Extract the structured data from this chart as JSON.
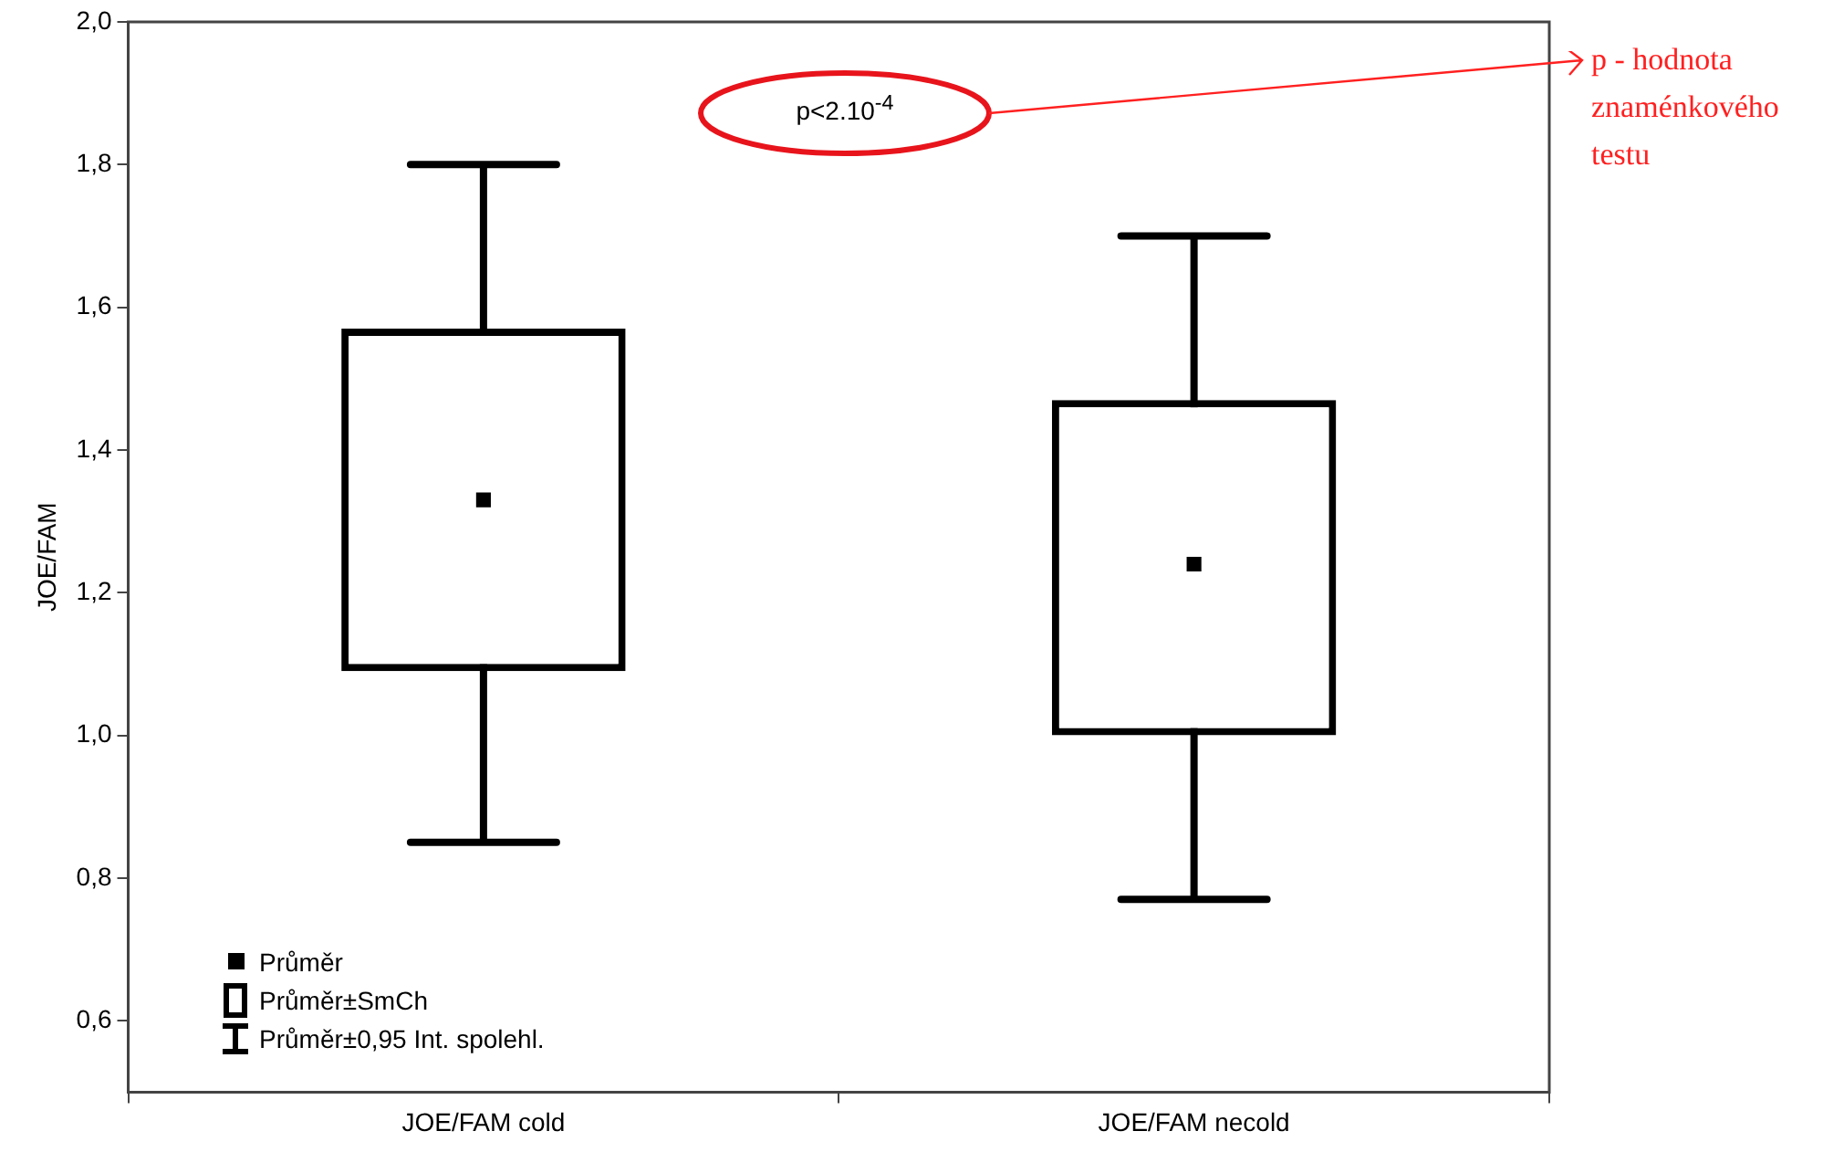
{
  "chart_data": {
    "type": "box",
    "ylabel": "JOE/FAM",
    "categories": [
      "JOE/FAM cold",
      "JOE/FAM necold"
    ],
    "ylim": [
      0.5,
      2.0
    ],
    "yticks": [
      {
        "value": 0.6,
        "label": "0,6"
      },
      {
        "value": 0.8,
        "label": "0,8"
      },
      {
        "value": 1.0,
        "label": "1,0"
      },
      {
        "value": 1.2,
        "label": "1,2"
      },
      {
        "value": 1.4,
        "label": "1,4"
      },
      {
        "value": 1.6,
        "label": "1,6"
      },
      {
        "value": 1.8,
        "label": "1,8"
      },
      {
        "value": 2.0,
        "label": "2,0"
      }
    ],
    "grid": false,
    "annotations": [
      "p<2.10$^{-4}$",
      "p - hodnota znaménkového testu",
      "Průměr",
      "Průměr±SmCh",
      "Průměr±0,95 Int. spolehl."
    ],
    "boxes": [
      {
        "low": 0.85,
        "q1": 1.09,
        "q3": 1.57,
        "high": 1.8,
        "mean": 1.33
      },
      {
        "low": 0.77,
        "q1": 1.0,
        "q3": 1.47,
        "high": 1.7,
        "mean": 1.24
      }
    ]
  }
}
